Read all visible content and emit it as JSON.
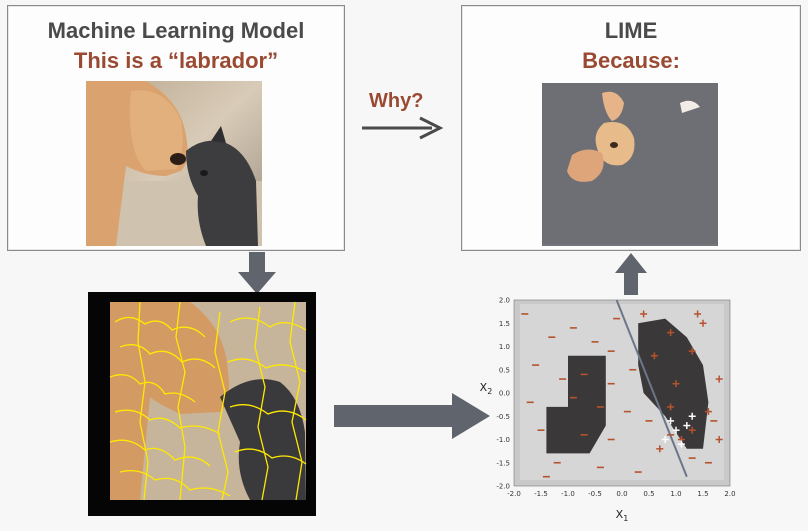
{
  "left_panel": {
    "title_line1": "Machine Learning Model",
    "title_line2": "This is a “labrador”",
    "image_icon": "dog-and-cat-photo"
  },
  "right_panel": {
    "title_line1": "LIME",
    "title_line2": "Because:",
    "image_icon": "masked-explanation-photo"
  },
  "why_label": "Why?",
  "segmented_image_icon": "superpixel-segmentation-photo",
  "colors": {
    "accent": "#9a4a32",
    "title_dark": "#4a4a4a",
    "arrow_gray": "#5f646d",
    "mask_gray": "#6d6f75",
    "segment_yellow": "#ffe900"
  },
  "chart_data": {
    "type": "scatter",
    "xlabel": "X1",
    "ylabel": "X2",
    "xlim": [
      -2.0,
      2.0
    ],
    "ylim": [
      -2.0,
      2.0
    ],
    "x_ticks": [
      "-2.0",
      "-1.5",
      "-1.0",
      "-0.5",
      "0.0",
      "0.5",
      "1.0",
      "1.5",
      "2.0"
    ],
    "y_ticks": [
      "2.0",
      "1.5",
      "1.0",
      "0.5",
      "0.0",
      "-0.5",
      "-1.0",
      "-1.5",
      "-2.0"
    ],
    "decision_line": [
      [
        -0.1,
        2.0
      ],
      [
        1.2,
        -1.8
      ]
    ],
    "regions": [
      {
        "label": "class-dark-left",
        "polygon": [
          [
            -1.0,
            0.8
          ],
          [
            -0.3,
            0.8
          ],
          [
            -0.3,
            -0.7
          ],
          [
            -0.6,
            -1.3
          ],
          [
            -1.4,
            -1.3
          ],
          [
            -1.4,
            -0.3
          ],
          [
            -1.0,
            -0.3
          ]
        ]
      },
      {
        "label": "class-dark-right",
        "polygon": [
          [
            0.3,
            1.5
          ],
          [
            0.8,
            1.6
          ],
          [
            1.2,
            1.2
          ],
          [
            1.5,
            0.6
          ],
          [
            1.6,
            -0.2
          ],
          [
            1.5,
            -1.2
          ],
          [
            1.2,
            -1.2
          ],
          [
            0.8,
            -0.5
          ],
          [
            0.4,
            0.0
          ],
          [
            0.3,
            0.6
          ]
        ]
      }
    ],
    "series": [
      {
        "marker": "dash",
        "points": [
          [
            -1.3,
            1.2
          ],
          [
            -0.9,
            1.4
          ],
          [
            -0.5,
            1.1
          ],
          [
            -0.2,
            0.9
          ],
          [
            -1.6,
            0.6
          ],
          [
            -1.1,
            0.3
          ],
          [
            -0.7,
            0.4
          ],
          [
            -0.2,
            0.2
          ],
          [
            -1.7,
            -0.2
          ],
          [
            -0.9,
            -0.1
          ],
          [
            -0.4,
            -0.3
          ],
          [
            -1.5,
            -0.8
          ],
          [
            -0.7,
            -0.9
          ],
          [
            -0.2,
            -1.0
          ],
          [
            -1.2,
            -1.5
          ],
          [
            -0.4,
            -1.6
          ],
          [
            0.1,
            -0.4
          ],
          [
            0.2,
            0.5
          ],
          [
            0.5,
            -0.6
          ],
          [
            0.9,
            -0.9
          ],
          [
            1.3,
            -1.4
          ],
          [
            1.6,
            -1.5
          ],
          [
            1.7,
            -0.6
          ],
          [
            -1.8,
            1.7
          ],
          [
            -0.1,
            1.6
          ],
          [
            -1.4,
            -1.8
          ],
          [
            0.3,
            -1.7
          ]
        ]
      },
      {
        "marker": "plus",
        "points": [
          [
            0.4,
            1.7
          ],
          [
            0.9,
            1.3
          ],
          [
            1.3,
            0.9
          ],
          [
            1.5,
            1.5
          ],
          [
            1.8,
            0.3
          ],
          [
            1.6,
            -0.4
          ],
          [
            0.6,
            0.8
          ],
          [
            1.0,
            0.2
          ],
          [
            0.9,
            -0.3
          ],
          [
            1.3,
            -0.8
          ],
          [
            0.7,
            -1.2
          ],
          [
            1.1,
            -1.0
          ],
          [
            1.8,
            -1.0
          ],
          [
            1.4,
            1.7
          ]
        ]
      },
      {
        "marker": "plus-white",
        "points": [
          [
            0.9,
            -0.6
          ],
          [
            1.0,
            -0.8
          ],
          [
            1.2,
            -0.7
          ],
          [
            0.8,
            -1.0
          ],
          [
            1.1,
            -1.1
          ],
          [
            1.3,
            -0.5
          ]
        ]
      }
    ]
  }
}
